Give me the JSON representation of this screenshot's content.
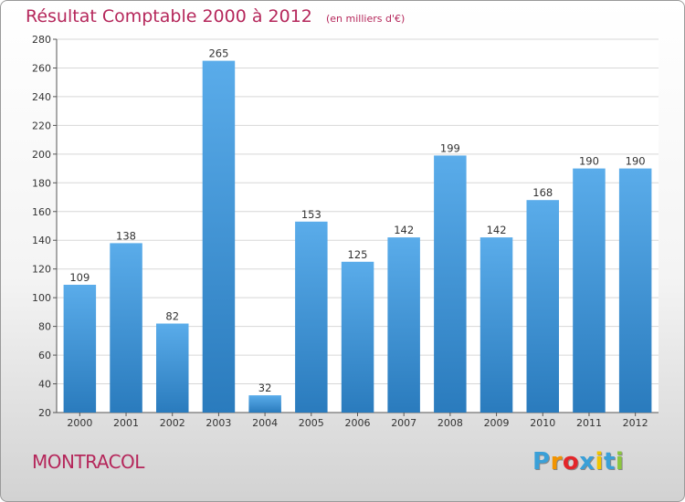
{
  "colors": {
    "title": "#b5275b",
    "bar_top": "#5aacea",
    "bar_bottom": "#2a7bbd",
    "grid": "#d7d7d7",
    "axis": "#555555",
    "text": "#333333"
  },
  "header": {
    "title": "Résultat Comptable 2000 à 2012",
    "subtitle": "(en milliers d'€)"
  },
  "footer": {
    "town": "MONTRACOL",
    "logo": {
      "letters": [
        "P",
        "r",
        "o",
        "x",
        "i",
        "t",
        "i"
      ],
      "colors": [
        "#3aa0d8",
        "#f29400",
        "#e3262a",
        "#3aa0d8",
        "#f2c500",
        "#3aa0d8",
        "#8cc63e"
      ]
    }
  },
  "chart_data": {
    "type": "bar",
    "title": "Résultat Comptable 2000 à 2012",
    "subtitle": "(en milliers d'€)",
    "xlabel": "",
    "ylabel": "",
    "categories": [
      "2000",
      "2001",
      "2002",
      "2003",
      "2004",
      "2005",
      "2006",
      "2007",
      "2008",
      "2009",
      "2010",
      "2011",
      "2012"
    ],
    "values": [
      109,
      138,
      82,
      265,
      32,
      153,
      125,
      142,
      199,
      142,
      168,
      190,
      190
    ],
    "ylim": [
      20,
      280
    ],
    "yticks": [
      20,
      40,
      60,
      80,
      100,
      120,
      140,
      160,
      180,
      200,
      220,
      240,
      260,
      280
    ],
    "grid": true,
    "legend": "none"
  }
}
